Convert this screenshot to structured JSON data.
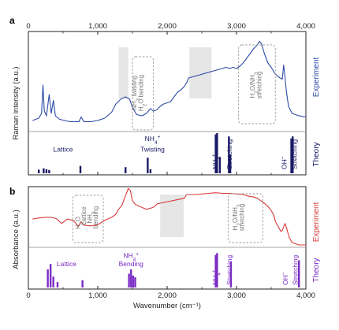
{
  "colors": {
    "experiment_a": "#2c4aa6",
    "experiment_b": "#d83a3a",
    "theory_a": "#1a1a66",
    "theory_b": "#7a2cc4",
    "shade": "#e6e6e6",
    "box": "#999999"
  },
  "chart_data": [
    {
      "type": "line",
      "panel": "a",
      "top_ticks": [
        "0",
        "1,000",
        "2,000",
        "3,000",
        "4,000"
      ],
      "ylabel": "Raman intensity (a.u.)",
      "xlim": [
        0,
        4000
      ],
      "grid": false,
      "side_labels": {
        "experiment": "Experiment",
        "theory": "Theory"
      },
      "experiment": {
        "name": "Experiment",
        "x": [
          60,
          150,
          190,
          210,
          230,
          260,
          300,
          330,
          360,
          390,
          450,
          600,
          730,
          760,
          800,
          900,
          1000,
          1100,
          1200,
          1260,
          1330,
          1400,
          1460,
          1500,
          1560,
          1640,
          1700,
          1760,
          1800,
          1850,
          1900,
          1950,
          2000,
          2050,
          2100,
          2150,
          2200,
          2250,
          2290,
          2310,
          2850,
          2900,
          2950,
          3000,
          3050,
          3100,
          3150,
          3200,
          3250,
          3300,
          3330,
          3360,
          3400,
          3450,
          3500,
          3550,
          3600,
          3630,
          3660,
          3680,
          3700,
          3720,
          3750,
          3800,
          3900,
          4000
        ],
        "y": [
          0.08,
          0.1,
          0.14,
          0.38,
          0.16,
          0.12,
          0.3,
          0.14,
          0.25,
          0.12,
          0.09,
          0.07,
          0.07,
          0.11,
          0.07,
          0.07,
          0.08,
          0.1,
          0.15,
          0.22,
          0.26,
          0.28,
          0.26,
          0.19,
          0.13,
          0.12,
          0.14,
          0.18,
          0.16,
          0.17,
          0.2,
          0.22,
          0.23,
          0.24,
          0.28,
          0.32,
          0.34,
          0.37,
          0.41,
          0.44,
          0.53,
          0.52,
          0.53,
          0.52,
          0.54,
          0.57,
          0.61,
          0.65,
          0.69,
          0.72,
          0.75,
          0.73,
          0.65,
          0.57,
          0.53,
          0.48,
          0.45,
          0.44,
          0.43,
          0.55,
          0.44,
          0.32,
          0.2,
          0.14,
          0.12,
          0.11
        ]
      },
      "theory": {
        "name": "Theory",
        "x": [
          150,
          220,
          260,
          300,
          750,
          1400,
          1720,
          1760,
          2700,
          2720,
          2760,
          2890,
          2910,
          3790,
          3810
        ],
        "y": [
          0.09,
          0.12,
          0.1,
          0.08,
          0.18,
          0.15,
          0.38,
          0.1,
          0.95,
          0.98,
          0.4,
          0.9,
          0.45,
          0.85,
          0.9
        ]
      },
      "shaded_regions": [
        [
          1300,
          1440
        ],
        [
          2320,
          2640
        ]
      ],
      "annotations": [
        {
          "text": "Lattice",
          "x": 500,
          "y": 0.55
        },
        {
          "lines": [
            "NH",
            "4",
            "+"
          ],
          "text": "NH4+",
          "x": 1790,
          "y": 0.82
        },
        {
          "text": "Twisting",
          "x": 1790,
          "y": 0.55
        },
        {
          "lines": [
            "NH",
            "4",
            "+"
          ],
          "text": "NH4+",
          "x": 2730,
          "y": 0.6
        },
        {
          "text": "Stretching",
          "x": 2930,
          "y": 0.6
        },
        {
          "lines": [
            "OH",
            "−"
          ],
          "text": "OH−",
          "x": 3720,
          "y": 0.6
        },
        {
          "text": "Stretching",
          "x": 3870,
          "y": 0.6
        }
      ],
      "box_annotations": [
        {
          "lines": [
            "NH",
            "3",
            " twisting"
          ],
          "text": "NH3 twisting",
          "x": 1555,
          "y": 0.6
        },
        {
          "lines": [
            "H",
            "2",
            "O bending"
          ],
          "text": "H2O bending",
          "x": 1655,
          "y": 0.6
        },
        {
          "lines": [
            "H",
            "2",
            "O/NH",
            "3"
          ],
          "text": "H2O/NH3",
          "x": 3260,
          "y": 0.55
        },
        {
          "text": "stretching",
          "x": 3360,
          "y": 0.55
        }
      ]
    },
    {
      "type": "line",
      "panel": "b",
      "xlabel": "Wavenumber (cm⁻¹)",
      "bottom_ticks": [
        "0",
        "1,000",
        "2,000",
        "3,000",
        "4,000"
      ],
      "ylabel": "Absorbance (a.u.)",
      "xlim": [
        0,
        4000
      ],
      "grid": false,
      "side_labels": {
        "experiment": "Experiment",
        "theory": "Theory"
      },
      "experiment": {
        "name": "Experiment",
        "x": [
          60,
          150,
          250,
          330,
          400,
          480,
          560,
          650,
          720,
          760,
          800,
          900,
          1000,
          1100,
          1200,
          1260,
          1300,
          1350,
          1400,
          1440,
          1470,
          1500,
          1540,
          1600,
          1700,
          1800,
          1860,
          1900,
          2250,
          2280,
          2400,
          2500,
          2600,
          2700,
          2800,
          2900,
          3000,
          3100,
          3150,
          3200,
          3250,
          3300,
          3350,
          3400,
          3450,
          3500,
          3540,
          3560,
          3600,
          3640,
          3660,
          3700,
          3720,
          3760,
          3800,
          3900,
          4000
        ],
        "y": [
          0.42,
          0.44,
          0.45,
          0.45,
          0.43,
          0.35,
          0.42,
          0.4,
          0.3,
          0.38,
          0.32,
          0.31,
          0.33,
          0.4,
          0.45,
          0.5,
          0.58,
          0.65,
          0.8,
          0.92,
          0.88,
          0.72,
          0.66,
          0.63,
          0.58,
          0.61,
          0.67,
          0.68,
          0.76,
          0.82,
          0.82,
          0.83,
          0.84,
          0.85,
          0.84,
          0.84,
          0.83,
          0.82,
          0.8,
          0.79,
          0.78,
          0.76,
          0.72,
          0.68,
          0.63,
          0.56,
          0.48,
          0.38,
          0.3,
          0.22,
          0.24,
          0.35,
          0.28,
          0.12,
          0.04,
          0.0,
          0.0
        ]
      },
      "theory": {
        "name": "Theory",
        "x": [
          280,
          320,
          360,
          420,
          780,
          1450,
          1480,
          1510,
          1540,
          2700,
          2720,
          2920,
          3900
        ],
        "y": [
          0.5,
          0.65,
          0.3,
          0.15,
          0.2,
          0.38,
          0.5,
          0.33,
          0.28,
          0.9,
          0.95,
          0.72,
          0.75
        ]
      },
      "shaded_regions": [
        [
          1900,
          2240
        ]
      ],
      "annotations": [
        {
          "text": "Lattice",
          "x": 550,
          "y": 0.7
        },
        {
          "lines": [
            "NH",
            "4",
            "+"
          ],
          "text": "NH4+",
          "x": 1480,
          "y": 0.96
        },
        {
          "text": "Bending",
          "x": 1480,
          "y": 0.7
        },
        {
          "lines": [
            "NH",
            "4",
            "+"
          ],
          "text": "NH4+",
          "x": 2730,
          "y": 0.55
        },
        {
          "text": "Stretching",
          "x": 2930,
          "y": 0.55
        },
        {
          "lines": [
            "OH",
            "−"
          ],
          "text": "OH−",
          "x": 3740,
          "y": 0.55
        },
        {
          "text": "Stretching",
          "x": 3880,
          "y": 0.55
        }
      ],
      "box_annotations": [
        {
          "lines": [
            "H",
            "2",
            "O"
          ],
          "text": "H2O",
          "x": 745,
          "y": 0.5
        },
        {
          "text": "Lattice",
          "x": 830,
          "y": 0.5
        },
        {
          "lines": [
            "NH",
            "3"
          ],
          "text": "NH3",
          "x": 915,
          "y": 0.5
        },
        {
          "text": "bending",
          "x": 1000,
          "y": 0.5
        },
        {
          "lines": [
            "H",
            "2",
            "O/NH",
            "3"
          ],
          "text": "H2O/NH3",
          "x": 3010,
          "y": 0.5
        },
        {
          "text": "stretching",
          "x": 3110,
          "y": 0.5
        }
      ]
    }
  ]
}
